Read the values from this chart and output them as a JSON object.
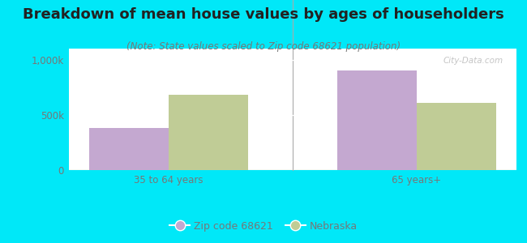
{
  "title": "Breakdown of mean house values by ages of householders",
  "subtitle": "(Note: State values scaled to Zip code 68621 population)",
  "categories": [
    "35 to 64 years",
    "65 years+"
  ],
  "zip_values": [
    380000,
    900000
  ],
  "state_values": [
    680000,
    610000
  ],
  "zip_color": "#c4a8d0",
  "state_color": "#c0cc96",
  "background_color": "#00e8f8",
  "ylim": [
    0,
    1100000
  ],
  "yticks": [
    0,
    500000,
    1000000
  ],
  "ytick_labels": [
    "0",
    "500k",
    "1,000k"
  ],
  "bar_width": 0.32,
  "legend_labels": [
    "Zip code 68621",
    "Nebraska"
  ],
  "watermark": "City-Data.com",
  "title_fontsize": 13,
  "subtitle_fontsize": 8.5,
  "tick_fontsize": 8.5,
  "legend_fontsize": 9,
  "tick_color": "#777777",
  "title_color": "#222222"
}
